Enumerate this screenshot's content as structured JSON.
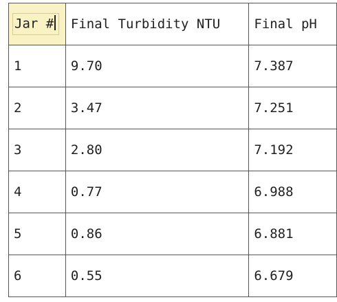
{
  "table": {
    "headers": [
      "Jar #",
      "Final Turbidity NTU",
      "Final pH"
    ],
    "rows": [
      [
        "1",
        "9.70",
        "7.387"
      ],
      [
        "2",
        "3.47",
        "7.251"
      ],
      [
        "3",
        "2.80",
        "7.192"
      ],
      [
        "4",
        "0.77",
        "6.988"
      ],
      [
        "5",
        "0.86",
        "6.881"
      ],
      [
        "6",
        "0.55",
        "6.679"
      ]
    ]
  }
}
